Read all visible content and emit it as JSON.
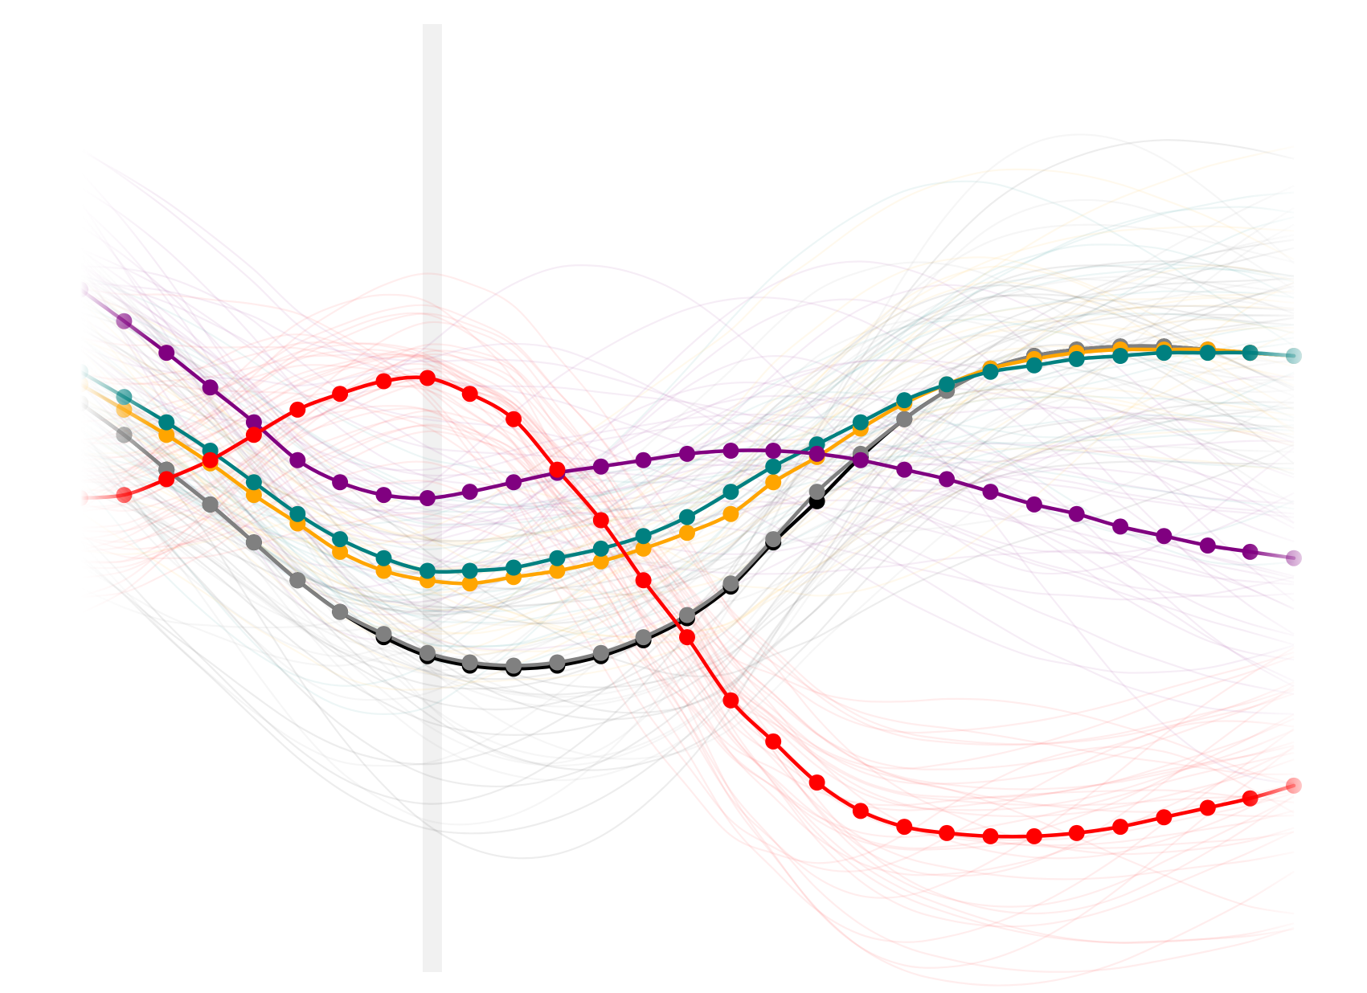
{
  "chart_data": {
    "type": "line",
    "title": "",
    "xlabel": "",
    "ylabel": "",
    "grid": false,
    "legend": "none",
    "xlim": [
      0,
      1
    ],
    "ylim": [
      -1.5,
      1.5
    ],
    "highlight_x": 0.29,
    "x": [
      0.0,
      0.036,
      0.071,
      0.107,
      0.143,
      0.179,
      0.214,
      0.25,
      0.286,
      0.321,
      0.357,
      0.393,
      0.429,
      0.464,
      0.5,
      0.536,
      0.571,
      0.607,
      0.643,
      0.679,
      0.714,
      0.75,
      0.786,
      0.821,
      0.857,
      0.893,
      0.929,
      0.964,
      1.0
    ],
    "series": [
      {
        "color": "#ff0000",
        "values": [
          0.0,
          0.01,
          0.06,
          0.12,
          0.2,
          0.28,
          0.33,
          0.37,
          0.38,
          0.33,
          0.25,
          0.09,
          -0.07,
          -0.26,
          -0.44,
          -0.64,
          -0.77,
          -0.9,
          -0.99,
          -1.04,
          -1.06,
          -1.07,
          -1.07,
          -1.06,
          -1.04,
          -1.01,
          -0.98,
          -0.95,
          -0.91
        ]
      },
      {
        "color": "#800080",
        "values": [
          0.66,
          0.56,
          0.46,
          0.35,
          0.24,
          0.12,
          0.05,
          0.01,
          0.0,
          0.02,
          0.05,
          0.08,
          0.1,
          0.12,
          0.14,
          0.15,
          0.15,
          0.14,
          0.12,
          0.09,
          0.06,
          0.02,
          -0.02,
          -0.05,
          -0.09,
          -0.12,
          -0.15,
          -0.17,
          -0.19
        ]
      },
      {
        "color": "#008080",
        "values": [
          0.4,
          0.32,
          0.24,
          0.15,
          0.05,
          -0.05,
          -0.13,
          -0.19,
          -0.23,
          -0.23,
          -0.22,
          -0.19,
          -0.16,
          -0.12,
          -0.06,
          0.02,
          0.1,
          0.17,
          0.24,
          0.31,
          0.36,
          0.4,
          0.42,
          0.44,
          0.45,
          0.46,
          0.46,
          0.46,
          0.45
        ]
      },
      {
        "color": "#ffa500",
        "values": [
          0.36,
          0.28,
          0.2,
          0.11,
          0.01,
          -0.08,
          -0.17,
          -0.23,
          -0.26,
          -0.27,
          -0.25,
          -0.23,
          -0.2,
          -0.16,
          -0.11,
          -0.05,
          0.05,
          0.13,
          0.22,
          0.3,
          0.36,
          0.41,
          0.44,
          0.46,
          0.47,
          0.47,
          0.47,
          0.46,
          0.45
        ]
      },
      {
        "color": "#808080",
        "values": [
          0.3,
          0.2,
          0.09,
          -0.02,
          -0.14,
          -0.26,
          -0.36,
          -0.43,
          -0.49,
          -0.52,
          -0.53,
          -0.52,
          -0.49,
          -0.44,
          -0.37,
          -0.27,
          -0.13,
          0.02,
          0.14,
          0.25,
          0.34,
          0.41,
          0.45,
          0.47,
          0.48,
          0.48,
          0.47,
          0.46,
          0.45
        ]
      },
      {
        "color": "#000000",
        "values": [
          0.3,
          0.2,
          0.09,
          -0.02,
          -0.14,
          -0.26,
          -0.36,
          -0.44,
          -0.5,
          -0.53,
          -0.54,
          -0.53,
          -0.5,
          -0.45,
          -0.38,
          -0.28,
          -0.14,
          -0.01,
          0.13,
          0.25,
          0.34,
          0.41,
          0.45,
          0.47,
          0.48,
          0.48,
          0.47,
          0.46,
          0.45
        ]
      }
    ]
  }
}
